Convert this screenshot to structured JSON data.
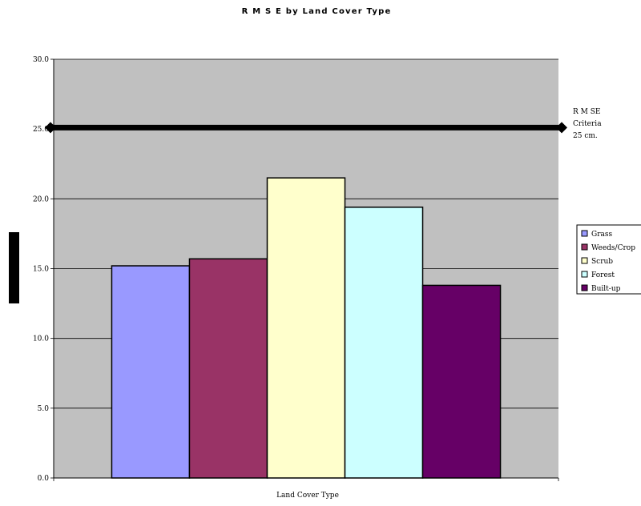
{
  "chart_data": {
    "type": "bar",
    "title": "R M S E by Land Cover Type",
    "xlabel": "Land Cover Type",
    "ylabel": "",
    "ylim": [
      0,
      30
    ],
    "yticks": [
      "0.0",
      "5.0",
      "10.0",
      "15.0",
      "20.0",
      "25.0",
      "30.0"
    ],
    "grid": true,
    "legend_position": "right",
    "categories": [
      "Land Cover Type"
    ],
    "series": [
      {
        "name": "Grass",
        "values": [
          15.2
        ],
        "color": "#9999ff"
      },
      {
        "name": "Weeds/Crop",
        "values": [
          15.7
        ],
        "color": "#993366"
      },
      {
        "name": "Scrub",
        "values": [
          21.5
        ],
        "color": "#ffffcc"
      },
      {
        "name": "Forest",
        "values": [
          19.4
        ],
        "color": "#ccffff"
      },
      {
        "name": "Built-up",
        "values": [
          13.8
        ],
        "color": "#660066"
      }
    ],
    "criteria": {
      "value": 25.1,
      "label_lines": [
        "R M SE",
        "Criteria",
        "25 cm."
      ]
    },
    "colors": {
      "plot_background": "#c0c0c0",
      "criteria_line": "#000000"
    }
  }
}
